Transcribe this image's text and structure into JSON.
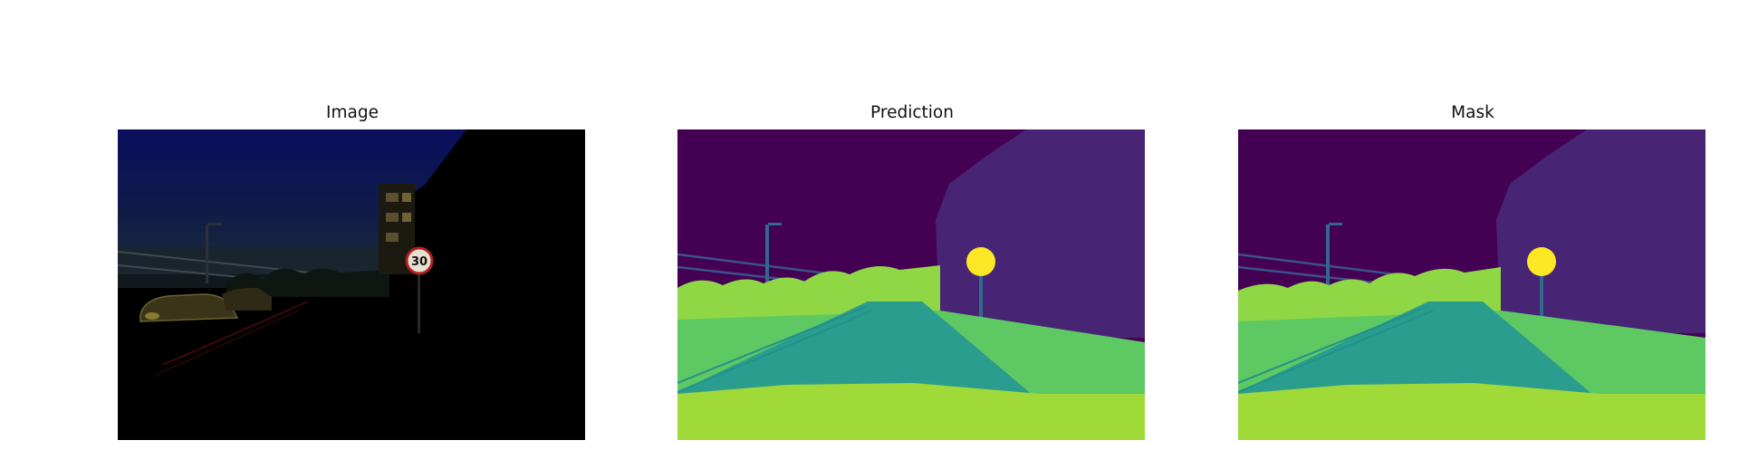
{
  "panels": {
    "image": {
      "title": "Image",
      "sign_text": "30"
    },
    "prediction": {
      "title": "Prediction"
    },
    "mask": {
      "title": "Mask"
    }
  },
  "palette": {
    "sky": "#440154",
    "building": "#482475",
    "pole": "#3b528b",
    "road": "#2a9d8e",
    "road_marking": "#21918c",
    "sidewalk": "#5ec962",
    "terrain": "#a0da39",
    "vegetation": "#8fd744",
    "sign": "#fde725"
  }
}
